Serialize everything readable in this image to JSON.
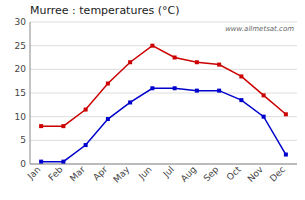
{
  "chart_data": {
    "type": "line",
    "title": "Murree : temperatures (°C)",
    "categories": [
      "Jan",
      "Feb",
      "Mar",
      "Apr",
      "May",
      "Jun",
      "Jul",
      "Aug",
      "Sep",
      "Oct",
      "Nov",
      "Dec"
    ],
    "series": [
      {
        "color": "#cc0000",
        "marker": "square",
        "values": [
          8,
          8,
          11.5,
          17,
          21.5,
          25,
          22.5,
          21.5,
          21,
          18.5,
          14.5,
          10.5
        ]
      },
      {
        "color": "#0000cc",
        "marker": "square",
        "values": [
          0.5,
          0.5,
          4,
          9.5,
          13,
          16,
          16,
          15.5,
          15.5,
          13.5,
          10,
          2
        ]
      }
    ],
    "ylim": [
      0,
      30
    ],
    "yticks": [
      0,
      5,
      10,
      15,
      20,
      25,
      30
    ],
    "grid": true,
    "annotations": [
      "www.allmetsat.com"
    ]
  }
}
